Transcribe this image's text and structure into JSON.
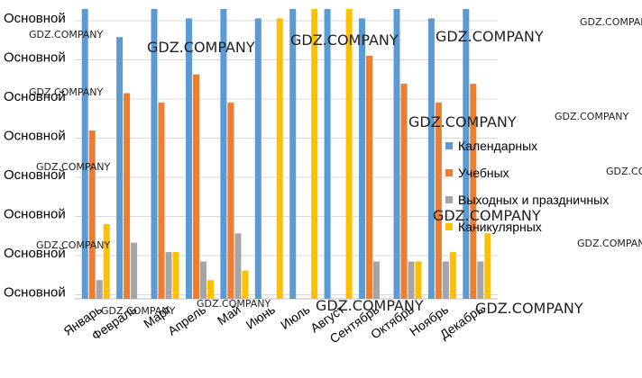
{
  "chart_data": {
    "type": "bar",
    "title": "",
    "xlabel": "",
    "ylabel": "",
    "y_tick_labels": [
      "Основной",
      "Основной",
      "Основной",
      "Основной",
      "Основной",
      "Основной",
      "Основной",
      "Основной"
    ],
    "ylim": [
      0,
      31
    ],
    "grid": "horizontal",
    "legend_position": "right",
    "categories": [
      "Январь",
      "Февраль",
      "Март",
      "Апрель",
      "Май",
      "Июнь",
      "Июль",
      "Август",
      "Сентябрь",
      "Октябрь",
      "Ноябрь",
      "Декабрь"
    ],
    "series": [
      {
        "name": "Календарных",
        "color": "#5b9bd5",
        "values": [
          31,
          28,
          31,
          30,
          31,
          30,
          31,
          31,
          30,
          31,
          30,
          31
        ]
      },
      {
        "name": "Учебных",
        "color": "#ed7d31",
        "values": [
          18,
          22,
          21,
          24,
          21,
          0,
          0,
          0,
          26,
          23,
          21,
          23
        ]
      },
      {
        "name": "Выходных и праздничных",
        "color": "#a5a5a5",
        "values": [
          2,
          6,
          5,
          4,
          7,
          0,
          0,
          0,
          4,
          4,
          4,
          4
        ]
      },
      {
        "name": "Каникулярных",
        "color": "#ffc000",
        "values": [
          8,
          0,
          5,
          2,
          3,
          30,
          31,
          31,
          0,
          4,
          5,
          7
        ]
      }
    ]
  },
  "watermarks": [
    "GDZ.COMPANY",
    "GDZ.COMPANY",
    "GDZ.COMPANY",
    "GDZ.COMPANY",
    "GDZ.COMPANY",
    "GDZ.COMPANY",
    "GDZ.COMPANY",
    "GDZ.COMPANY",
    "GDZ.COMPANY",
    "GDZ.COMPANY",
    "GDZ.COMPANY",
    "GDZ.COMPANY",
    "GDZ.COMPANY",
    "GDZ.COMPANY",
    "GDZ.COMPANY",
    "GDZ.COMPANY",
    "GDZ.COMPANY",
    "GDZ.COMPANY"
  ]
}
